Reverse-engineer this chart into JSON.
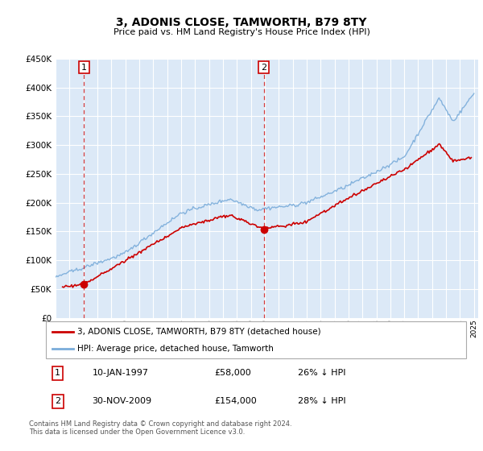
{
  "title": "3, ADONIS CLOSE, TAMWORTH, B79 8TY",
  "subtitle": "Price paid vs. HM Land Registry's House Price Index (HPI)",
  "legend_line1": "3, ADONIS CLOSE, TAMWORTH, B79 8TY (detached house)",
  "legend_line2": "HPI: Average price, detached house, Tamworth",
  "annotation1_date": "10-JAN-1997",
  "annotation1_price": "£58,000",
  "annotation1_hpi": "26% ↓ HPI",
  "annotation2_date": "30-NOV-2009",
  "annotation2_price": "£154,000",
  "annotation2_hpi": "28% ↓ HPI",
  "footer": "Contains HM Land Registry data © Crown copyright and database right 2024.\nThis data is licensed under the Open Government Licence v3.0.",
  "plot_bg": "#dce9f7",
  "grid_color": "#ffffff",
  "red_color": "#cc0000",
  "blue_color": "#7aacda",
  "marker1_x": 1997.04,
  "marker1_y": 58000,
  "marker2_x": 2009.92,
  "marker2_y": 154000,
  "ylim": [
    0,
    450000
  ],
  "xlim": [
    1995.3,
    2025.3
  ]
}
